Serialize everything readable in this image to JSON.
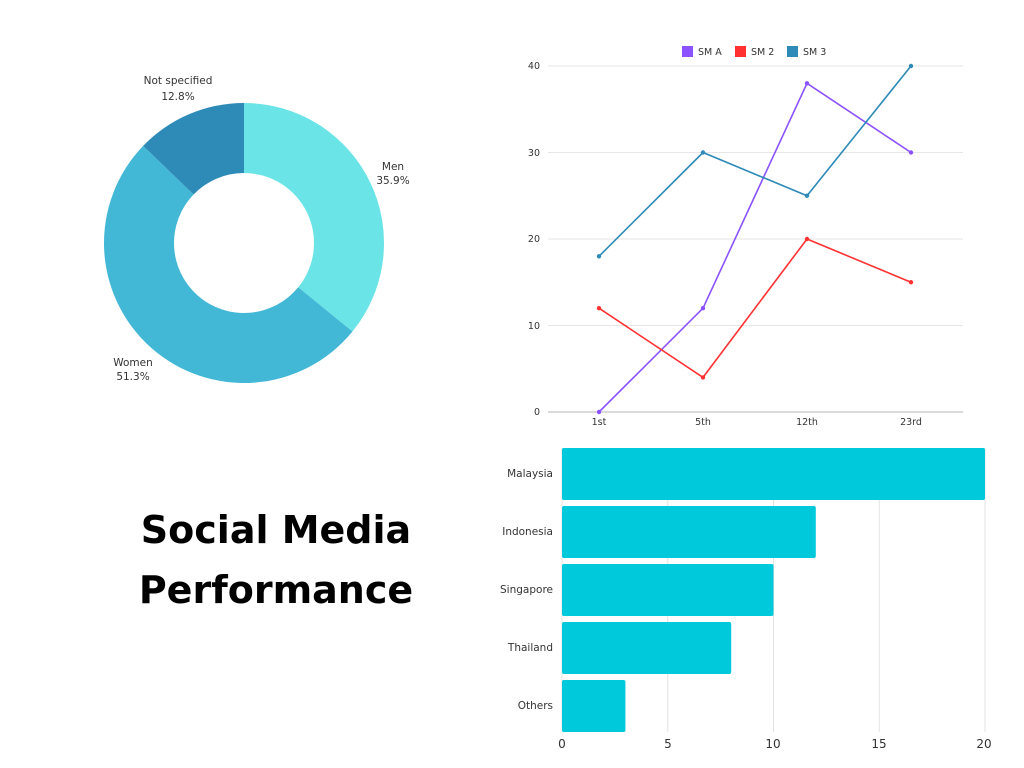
{
  "title": {
    "line1": "Social Media",
    "line2": "Performance"
  },
  "chart_data": [
    {
      "type": "pie",
      "variant": "donut",
      "slices": [
        {
          "label": "Men",
          "value": 35.9,
          "display": "35.9%",
          "color": "#6ae4e6"
        },
        {
          "label": "Women",
          "value": 51.3,
          "display": "51.3%",
          "color": "#43b8d6"
        },
        {
          "label": "Not specified",
          "value": 12.8,
          "display": "12.8%",
          "color": "#2e8ab7"
        }
      ]
    },
    {
      "type": "line",
      "categories": [
        "1st",
        "5th",
        "12th",
        "23rd"
      ],
      "series": [
        {
          "name": "SM A",
          "values": [
            0,
            12,
            38,
            30
          ],
          "color": "#8c52ff"
        },
        {
          "name": "SM 2",
          "values": [
            12,
            4,
            20,
            15
          ],
          "color": "#ff3131"
        },
        {
          "name": "SM 3",
          "values": [
            18,
            30,
            25,
            40
          ],
          "color": "#2e8ab7"
        }
      ],
      "ylim": [
        0,
        40
      ],
      "yticks": [
        "0",
        "10",
        "20",
        "30",
        "40"
      ],
      "grid": true,
      "legend": "top-center"
    },
    {
      "type": "bar",
      "orientation": "horizontal",
      "categories": [
        "Malaysia",
        "Indonesia",
        "Singapore",
        "Thailand",
        "Others"
      ],
      "values": [
        20,
        12,
        10,
        8,
        3
      ],
      "color": "#00c9db",
      "xlim": [
        0,
        20
      ],
      "xticks": [
        "0",
        "5",
        "10",
        "15",
        "20"
      ],
      "grid": true
    }
  ]
}
